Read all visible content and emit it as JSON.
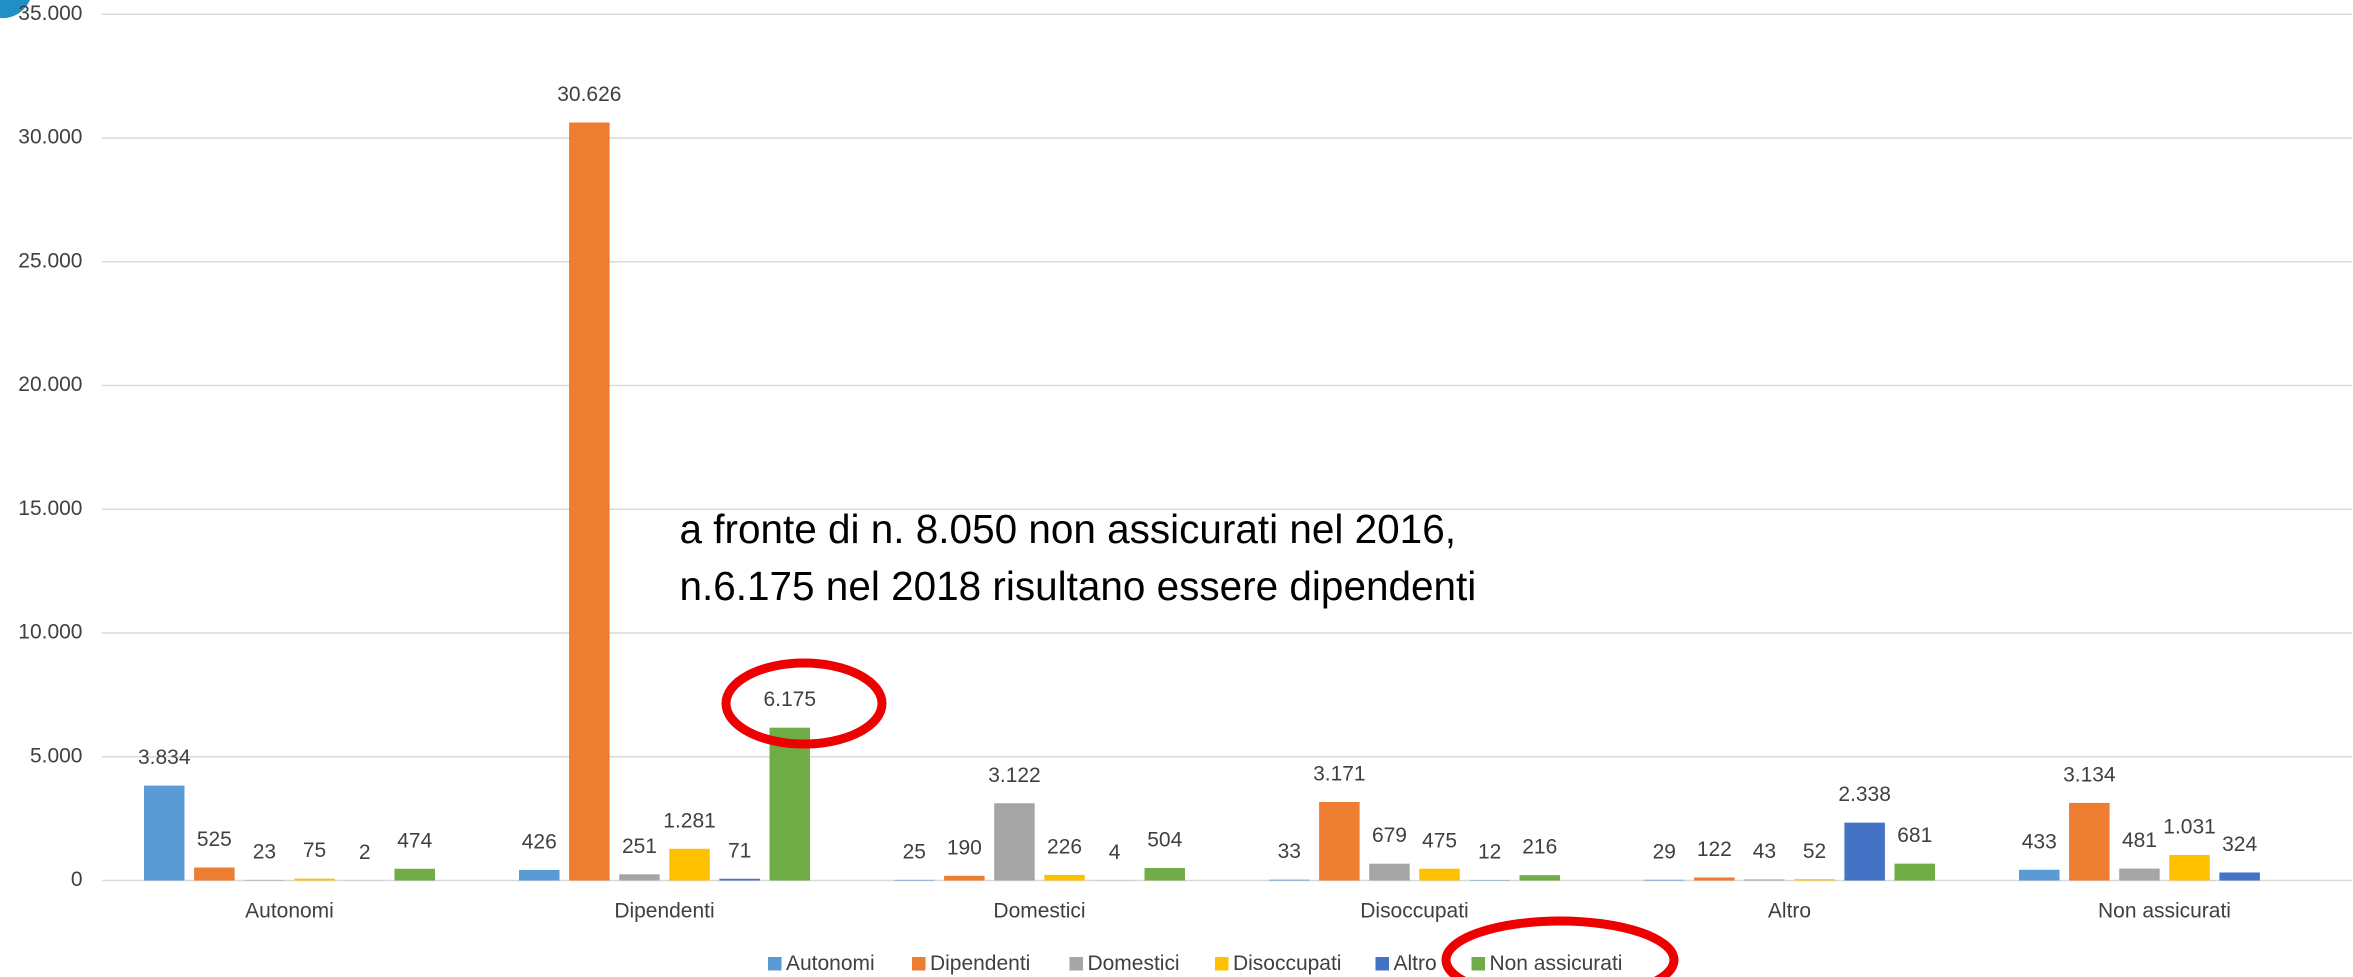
{
  "chart_data": {
    "type": "bar",
    "categories": [
      "Autonomi",
      "Dipendenti",
      "Domestici",
      "Disoccupati",
      "Altro",
      "Non assicurati"
    ],
    "series": [
      {
        "name": "Autonomi",
        "color": "#5b9bd5",
        "values": [
          3834,
          426,
          25,
          33,
          29,
          433
        ],
        "value_labels": [
          "3.834",
          "426",
          "25",
          "33",
          "29",
          "433"
        ]
      },
      {
        "name": "Dipendenti",
        "color": "#ed7d31",
        "values": [
          525,
          30626,
          190,
          3171,
          122,
          3134
        ],
        "value_labels": [
          "525",
          "30.626",
          "190",
          "3.171",
          "122",
          "3.134"
        ]
      },
      {
        "name": "Domestici",
        "color": "#a5a5a5",
        "values": [
          23,
          251,
          3122,
          679,
          43,
          481
        ],
        "value_labels": [
          "23",
          "251",
          "3.122",
          "679",
          "43",
          "481"
        ]
      },
      {
        "name": "Disoccupati",
        "color": "#ffc000",
        "values": [
          75,
          1281,
          226,
          475,
          52,
          1031
        ],
        "value_labels": [
          "75",
          "1.281",
          "226",
          "475",
          "52",
          "1.031"
        ]
      },
      {
        "name": "Altro",
        "color": "#4472c4",
        "values": [
          2,
          71,
          4,
          12,
          2338,
          324
        ],
        "value_labels": [
          "2",
          "71",
          "4",
          "12",
          "2.338",
          "324"
        ]
      },
      {
        "name": "Non assicurati",
        "color": "#70ad47",
        "values": [
          474,
          6175,
          504,
          216,
          681,
          null
        ],
        "value_labels": [
          "474",
          "6.175",
          "504",
          "216",
          "681",
          null
        ]
      }
    ],
    "ylim": [
      0,
      35000
    ],
    "yticks": [
      0,
      {
        "value": 5000,
        "label": "5.000"
      },
      {
        "value": 10000,
        "label": "10.000"
      },
      {
        "value": 15000,
        "label": "15.000"
      },
      {
        "value": 20000,
        "label": "20.000"
      },
      {
        "value": 25000,
        "label": "25.000"
      },
      {
        "value": 30000,
        "label": "30.000"
      },
      {
        "value": 35000,
        "label": "35.000"
      }
    ],
    "grid": true,
    "legend": "bottom",
    "annotation": [
      "a fronte di n. 8.050 non assicurati nel 2016,",
      "n.6.175 nel 2018 risultano essere dipendenti"
    ]
  }
}
